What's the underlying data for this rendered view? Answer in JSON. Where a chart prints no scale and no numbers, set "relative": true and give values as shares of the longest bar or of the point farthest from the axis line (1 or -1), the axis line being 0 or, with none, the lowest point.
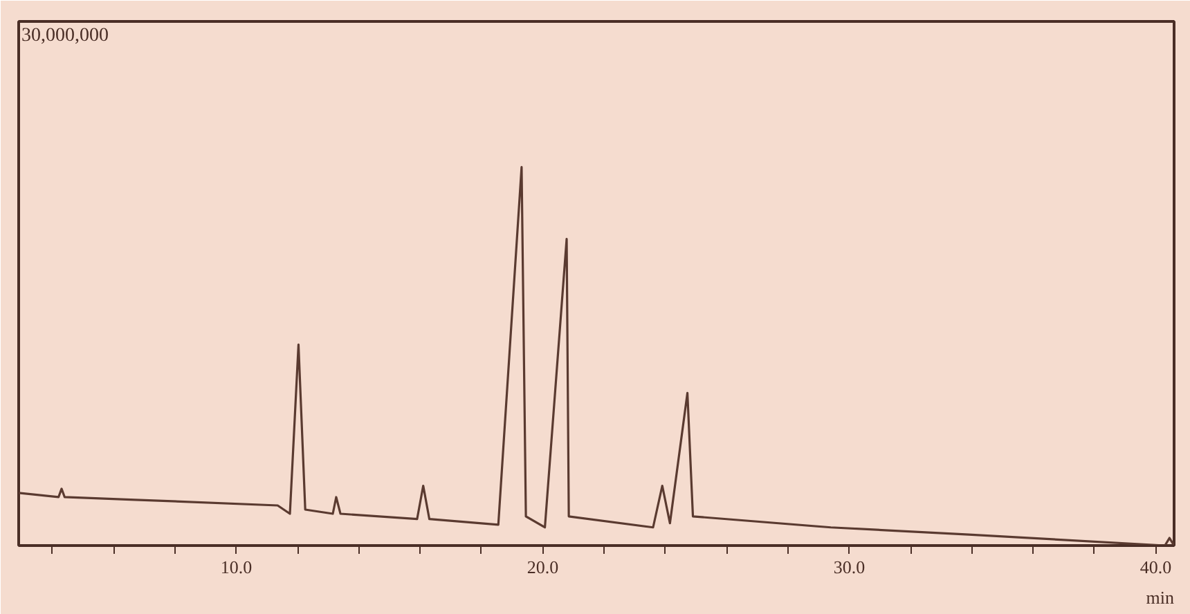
{
  "chart_data": {
    "type": "line",
    "relative": true,
    "annotations": [
      "30,000,000"
    ],
    "xlabel": "min",
    "x": [
      2.9,
      4.2,
      4.3,
      4.4,
      6.7,
      11.35,
      11.75,
      12.03,
      12.25,
      13.15,
      13.26,
      13.4,
      15.9,
      16.1,
      16.3,
      18.55,
      19.31,
      19.45,
      20.07,
      20.78,
      20.85,
      23.6,
      23.9,
      24.15,
      24.72,
      24.9,
      29.4,
      33.9,
      40.3,
      40.45,
      40.6
    ],
    "series": [
      {
        "color": "#5a3a30",
        "values": [
          0.139,
          0.128,
          0.15,
          0.128,
          0.121,
          0.106,
          0.084,
          0.531,
          0.095,
          0.084,
          0.128,
          0.084,
          0.07,
          0.158,
          0.07,
          0.055,
          1,
          0.077,
          0.048,
          0.81,
          0.077,
          0.048,
          0.158,
          0.059,
          0.403,
          0.077,
          0.048,
          0.029,
          0,
          0.02,
          0
        ]
      }
    ],
    "xlim": [
      2.9,
      40.6
    ],
    "xticks": [
      {
        "value": 4,
        "label": null
      },
      {
        "value": 6,
        "label": null
      },
      {
        "value": 8,
        "label": null
      },
      {
        "value": 10,
        "label": "10.0"
      },
      {
        "value": 12,
        "label": null
      },
      {
        "value": 14,
        "label": null
      },
      {
        "value": 16,
        "label": null
      },
      {
        "value": 18,
        "label": null
      },
      {
        "value": 20,
        "label": "20.0"
      },
      {
        "value": 22,
        "label": null
      },
      {
        "value": 24,
        "label": null
      },
      {
        "value": 26,
        "label": null
      },
      {
        "value": 28,
        "label": null
      },
      {
        "value": 30,
        "label": "30.0"
      },
      {
        "value": 32,
        "label": null
      },
      {
        "value": 34,
        "label": null
      },
      {
        "value": 36,
        "label": null
      },
      {
        "value": 38,
        "label": null
      },
      {
        "value": 40,
        "label": "40.0"
      }
    ],
    "line_style": "solid"
  }
}
